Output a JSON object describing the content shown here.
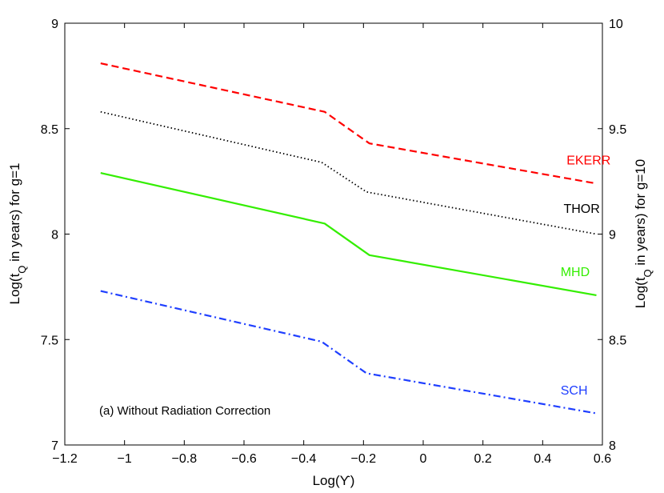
{
  "chart_data": {
    "type": "line",
    "xlabel": "Log(ϒ)",
    "ylabel_left": {
      "prefix": "Log(t",
      "sub": "Q",
      "suffix": " in years) for g=1"
    },
    "ylabel_right": {
      "prefix": "Log(t",
      "sub": "Q",
      "suffix": " in years) for g=10"
    },
    "xlim": [
      -1.2,
      0.6
    ],
    "ylim_left": [
      7,
      9
    ],
    "ylim_right": [
      8,
      10
    ],
    "x_ticks": [
      -1.2,
      -1,
      -0.8,
      -0.6,
      -0.4,
      -0.2,
      0,
      0.2,
      0.4,
      0.6
    ],
    "x_tick_labels": [
      "−1.2",
      "−1",
      "−0.8",
      "−0.6",
      "−0.4",
      "−0.2",
      "0",
      "0.2",
      "0.4",
      "0.6"
    ],
    "y_left_ticks": [
      7,
      7.5,
      8,
      8.5,
      9
    ],
    "y_left_tick_labels": [
      "7",
      "7.5",
      "8",
      "8.5",
      "9"
    ],
    "y_right_ticks": [
      8,
      8.5,
      9,
      9.5,
      10
    ],
    "y_right_tick_labels": [
      "8",
      "8.5",
      "9",
      "9.5",
      "10"
    ],
    "annotation": "(a) Without Radiation Correction",
    "series": [
      {
        "name": "EKERR",
        "color": "#ff0000",
        "style": "dashed",
        "x": [
          -1.08,
          -0.33,
          -0.18,
          0.58
        ],
        "y": [
          8.81,
          8.58,
          8.43,
          8.24
        ],
        "label_at": [
          0.48,
          8.33
        ]
      },
      {
        "name": "THOR",
        "color": "#000000",
        "style": "dotted",
        "x": [
          -1.08,
          -0.34,
          -0.19,
          0.58
        ],
        "y": [
          8.58,
          8.34,
          8.2,
          8.0
        ],
        "label_at": [
          0.47,
          8.1
        ]
      },
      {
        "name": "MHD",
        "color": "#33ee00",
        "style": "solid",
        "x": [
          -1.08,
          -0.33,
          -0.18,
          0.58
        ],
        "y": [
          8.29,
          8.05,
          7.9,
          7.71
        ],
        "label_at": [
          0.46,
          7.8
        ]
      },
      {
        "name": "SCH",
        "color": "#1f3fff",
        "style": "dashdot",
        "x": [
          -1.08,
          -0.34,
          -0.19,
          0.58
        ],
        "y": [
          7.73,
          7.49,
          7.34,
          7.15
        ],
        "label_at": [
          0.46,
          7.24
        ]
      }
    ]
  }
}
